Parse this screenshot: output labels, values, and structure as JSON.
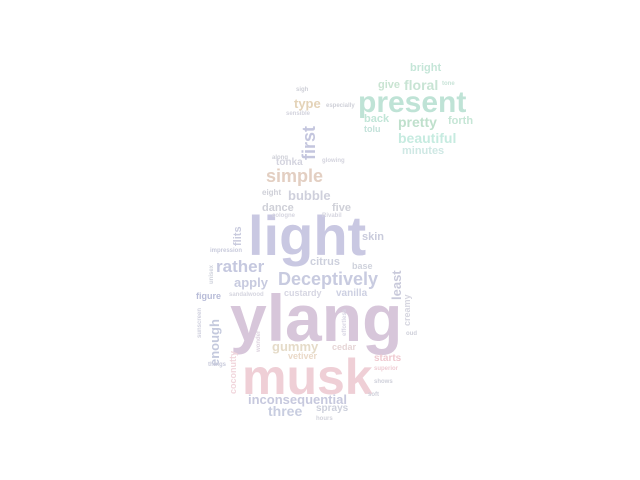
{
  "words": [
    {
      "text": "ylang",
      "color": "#d7c6da"
    },
    {
      "text": "musk",
      "color": "#efcfd6"
    },
    {
      "text": "light",
      "color": "#c9c8e2"
    },
    {
      "text": "present",
      "color": "#bfe3d6"
    },
    {
      "text": "Deceptively",
      "color": "#c8cbe0"
    },
    {
      "text": "simple",
      "color": "#e3cfc2"
    },
    {
      "text": "rather",
      "color": "#c5c8df"
    },
    {
      "text": "first",
      "color": "#c4c6de"
    },
    {
      "text": "floral",
      "color": "#c8e4d4"
    },
    {
      "text": "pretty",
      "color": "#bfe0cc"
    },
    {
      "text": "beautiful",
      "color": "#c6ebe0"
    },
    {
      "text": "bubble",
      "color": "#cfd0dc"
    },
    {
      "text": "inconsequential",
      "color": "#c7c9de"
    },
    {
      "text": "three",
      "color": "#c8cde0"
    },
    {
      "text": "gummy",
      "color": "#e5dbc8"
    },
    {
      "text": "enough",
      "color": "#c4c9dd"
    },
    {
      "text": "apply",
      "color": "#c7cadf"
    },
    {
      "text": "least",
      "color": "#c9cadb"
    },
    {
      "text": "citrus",
      "color": "#cdd0dd"
    },
    {
      "text": "type",
      "color": "#e4d3b8"
    },
    {
      "text": "dance",
      "color": "#cfd0d8"
    },
    {
      "text": "tonka",
      "color": "#d4d4df"
    },
    {
      "text": "give",
      "color": "#c9e4d2"
    },
    {
      "text": "back",
      "color": "#c2e6d8"
    },
    {
      "text": "bright",
      "color": "#c5e6d8"
    },
    {
      "text": "forth",
      "color": "#c6e6d6"
    },
    {
      "text": "minutes",
      "color": "#cfe8e4"
    },
    {
      "text": "tolu",
      "color": "#c3e2da"
    },
    {
      "text": "skin",
      "color": "#c9cbdc"
    },
    {
      "text": "five",
      "color": "#cfd0d8"
    },
    {
      "text": "flits",
      "color": "#c9cbde"
    },
    {
      "text": "custardy",
      "color": "#d6d6e2"
    },
    {
      "text": "vanilla",
      "color": "#cdd0e2"
    },
    {
      "text": "base",
      "color": "#cfd2dc"
    },
    {
      "text": "creamy",
      "color": "#d6d6e0"
    },
    {
      "text": "figure",
      "color": "#b8bcd8"
    },
    {
      "text": "sprays",
      "color": "#cdd0dc"
    },
    {
      "text": "starts",
      "color": "#efc9d0"
    },
    {
      "text": "vetiver",
      "color": "#ead9c8"
    },
    {
      "text": "cedar",
      "color": "#e6d5d6"
    },
    {
      "text": "coconutty",
      "color": "#f1d6dc"
    },
    {
      "text": "eight",
      "color": "#cfd0d8"
    },
    {
      "text": "impression",
      "color": "#c9cbdc"
    },
    {
      "text": "unisex",
      "color": "#cfd2dc"
    },
    {
      "text": "sandalwood",
      "color": "#d6d6e0"
    },
    {
      "text": "sunscreen",
      "color": "#cfd0de"
    },
    {
      "text": "things",
      "color": "#c9cbdc"
    },
    {
      "text": "oud",
      "color": "#cfd0da"
    },
    {
      "text": "shows",
      "color": "#cfd0da"
    },
    {
      "text": "soft",
      "color": "#cfd0da"
    },
    {
      "text": "hours",
      "color": "#d2d3dc"
    },
    {
      "text": "sigh",
      "color": "#cfd0d8"
    },
    {
      "text": "especially",
      "color": "#cfd0d8"
    },
    {
      "text": "sensible",
      "color": "#d4d4de"
    },
    {
      "text": "along",
      "color": "#cfd0d8"
    },
    {
      "text": "glowing",
      "color": "#d4d4de"
    },
    {
      "text": "cologne",
      "color": "#d6d6e0"
    },
    {
      "text": "Rivabil",
      "color": "#d6d6e0"
    },
    {
      "text": "superior",
      "color": "#efcdd4"
    },
    {
      "text": "wonder",
      "color": "#ddd2df"
    },
    {
      "text": "effortless",
      "color": "#d8d6e4"
    },
    {
      "text": "tone",
      "color": "#c9e4d8"
    }
  ]
}
